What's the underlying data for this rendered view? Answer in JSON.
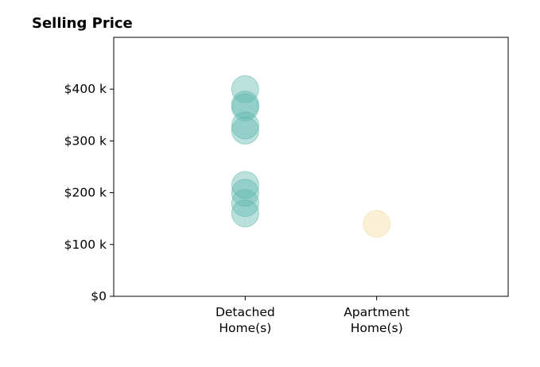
{
  "chart_data": {
    "type": "scatter",
    "title": "Selling Price",
    "xlabel": "",
    "ylabel": "",
    "categories": [
      "Detached\nHome(s)",
      "Apartment\nHome(s)"
    ],
    "xlim": [
      -1,
      2
    ],
    "ylim": [
      0,
      500000
    ],
    "yticks": [
      0,
      100000,
      200000,
      300000,
      400000
    ],
    "ytick_labels": [
      "$0",
      "$100 k",
      "$200 k",
      "$300 k",
      "$400 k"
    ],
    "grid": false,
    "legend": "none",
    "series": [
      {
        "category": 0,
        "color": "#5FB8AE",
        "values": [
          400000,
          370000,
          365000,
          330000,
          320000,
          215000,
          200000,
          180000,
          160000
        ]
      },
      {
        "category": 1,
        "color": "#F2DB9E",
        "values": [
          140000
        ]
      }
    ]
  }
}
